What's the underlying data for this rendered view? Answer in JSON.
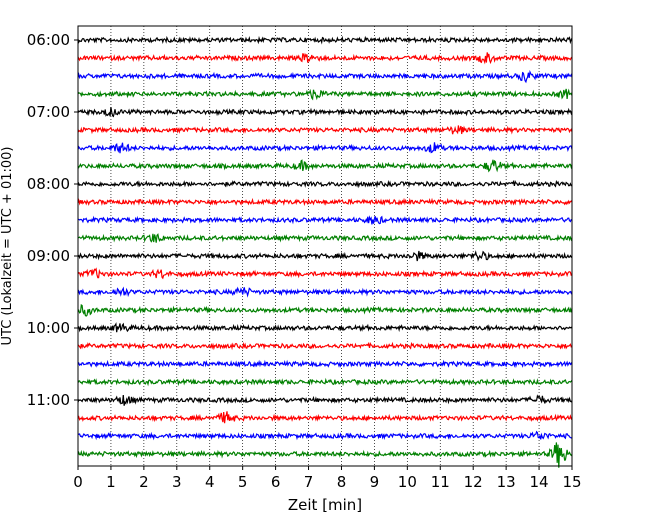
{
  "chart_data": {
    "type": "line",
    "title": "",
    "xlabel": "Zeit  [min]",
    "ylabel": "UTC (Lokalzeit = UTC + 01:00)",
    "xlim": [
      0,
      15
    ],
    "x_ticks": [
      "0",
      "1",
      "2",
      "3",
      "4",
      "5",
      "6",
      "7",
      "8",
      "9",
      "10",
      "11",
      "12",
      "13",
      "14",
      "15"
    ],
    "y_ticks": [
      "06:00",
      "07:00",
      "08:00",
      "09:00",
      "10:00",
      "11:00"
    ],
    "grid": "vertical dotted",
    "trace_interval_minutes": 15,
    "start_time": "06:00",
    "trace_colors": [
      "#000000",
      "#ff0000",
      "#0000ff",
      "#008000"
    ],
    "traces": [
      {
        "start": "06:00",
        "color": "#000000"
      },
      {
        "start": "06:15",
        "color": "#ff0000"
      },
      {
        "start": "06:30",
        "color": "#0000ff"
      },
      {
        "start": "06:45",
        "color": "#008000"
      },
      {
        "start": "07:00",
        "color": "#000000"
      },
      {
        "start": "07:15",
        "color": "#ff0000"
      },
      {
        "start": "07:30",
        "color": "#0000ff"
      },
      {
        "start": "07:45",
        "color": "#008000"
      },
      {
        "start": "08:00",
        "color": "#000000"
      },
      {
        "start": "08:15",
        "color": "#ff0000"
      },
      {
        "start": "08:30",
        "color": "#0000ff"
      },
      {
        "start": "08:45",
        "color": "#008000"
      },
      {
        "start": "09:00",
        "color": "#000000"
      },
      {
        "start": "09:15",
        "color": "#ff0000"
      },
      {
        "start": "09:30",
        "color": "#0000ff"
      },
      {
        "start": "09:45",
        "color": "#008000"
      },
      {
        "start": "10:00",
        "color": "#000000"
      },
      {
        "start": "10:15",
        "color": "#ff0000"
      },
      {
        "start": "10:30",
        "color": "#0000ff"
      },
      {
        "start": "10:45",
        "color": "#008000"
      },
      {
        "start": "11:00",
        "color": "#000000"
      },
      {
        "start": "11:15",
        "color": "#ff0000"
      },
      {
        "start": "11:30",
        "color": "#0000ff"
      },
      {
        "start": "11:45",
        "color": "#008000"
      }
    ]
  }
}
